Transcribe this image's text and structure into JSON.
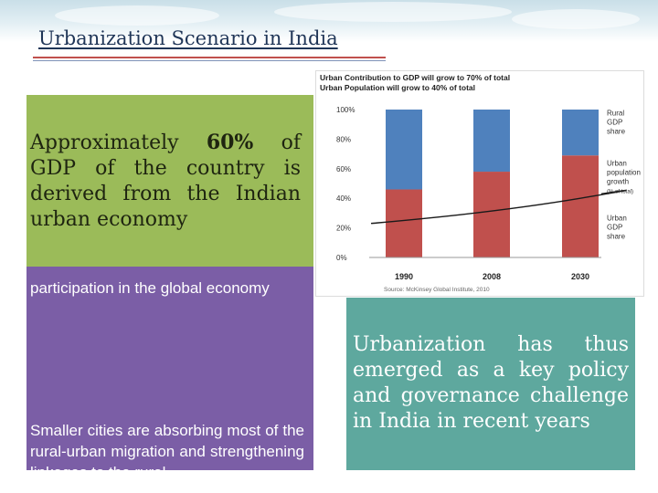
{
  "slide": {
    "title": "Urbanization Scenario in India"
  },
  "green_box": {
    "text_before": "Approximately ",
    "highlight": "60%",
    "text_after": " of GDP of the country is derived from the Indian urban economy"
  },
  "purple_box": {
    "text_1": "participation in the global economy",
    "text_2": "Smaller cities are absorbing most of the rural-urban migration and strengthening linkages to the rural"
  },
  "teal_box": {
    "text": "Urbanization has thus emerged as a key policy and governance challenge in India in recent years"
  },
  "chart_data": {
    "type": "bar",
    "title": "Urban Contribution to GDP will grow to 70% of total",
    "subtitle": "Urban Population will grow to 40% of total",
    "categories": [
      "1990",
      "2008",
      "2030"
    ],
    "series": [
      {
        "name": "Urban GDP share",
        "values": [
          46,
          58,
          69
        ],
        "color": "#c0504d"
      },
      {
        "name": "Rural GDP share",
        "values": [
          54,
          42,
          31
        ],
        "color": "#4f81bd"
      }
    ],
    "line": {
      "name": "Urban population growth (% of total)",
      "values": [
        25,
        30,
        40
      ],
      "color": "#1a1a1a"
    },
    "y_ticks": [
      "100%",
      "80%",
      "60%",
      "40%",
      "20%",
      "0%"
    ],
    "ylim": [
      0,
      100
    ],
    "legend": [
      "Rural GDP share",
      "Urban population growth (% of total)",
      "Urban GDP share"
    ],
    "source": "Source: McKinsey Global Institute, 2010"
  }
}
